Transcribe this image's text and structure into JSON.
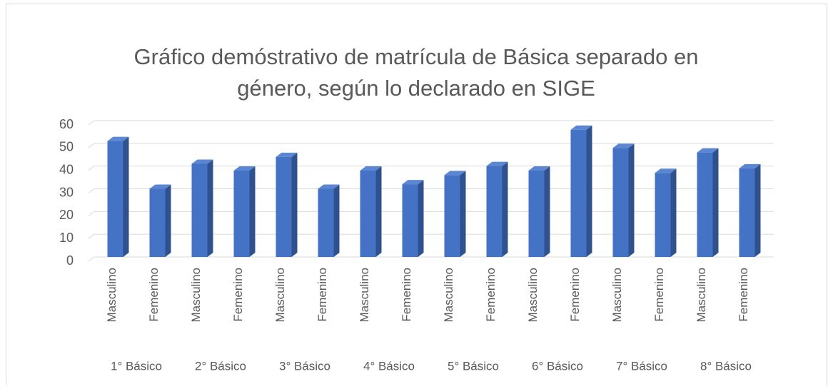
{
  "chart_data": {
    "type": "bar3d",
    "title": "Gráfico demóstrativo de matrícula de Básica separado en género, según lo declarado en SIGE",
    "categories": [
      "Masculino",
      "Femenino",
      "Masculino",
      "Femenino",
      "Masculino",
      "Femenino",
      "Masculino",
      "Femenino",
      "Masculino",
      "Femenino",
      "Masculino",
      "Femenino",
      "Masculino",
      "Femenino",
      "Masculino",
      "Femenino"
    ],
    "groups": [
      "1° Básico",
      "2° Básico",
      "3° Básico",
      "4° Básico",
      "5° Básico",
      "6° Básico",
      "7° Básico",
      "8° Básico"
    ],
    "values": [
      51,
      30,
      41,
      38,
      44,
      30,
      38,
      32,
      36,
      40,
      38,
      56,
      48,
      37,
      46,
      39
    ],
    "color": "#4472c4",
    "ylim": [
      0,
      60
    ],
    "yticks": [
      0,
      10,
      20,
      30,
      40,
      50,
      60
    ],
    "grid": true
  }
}
